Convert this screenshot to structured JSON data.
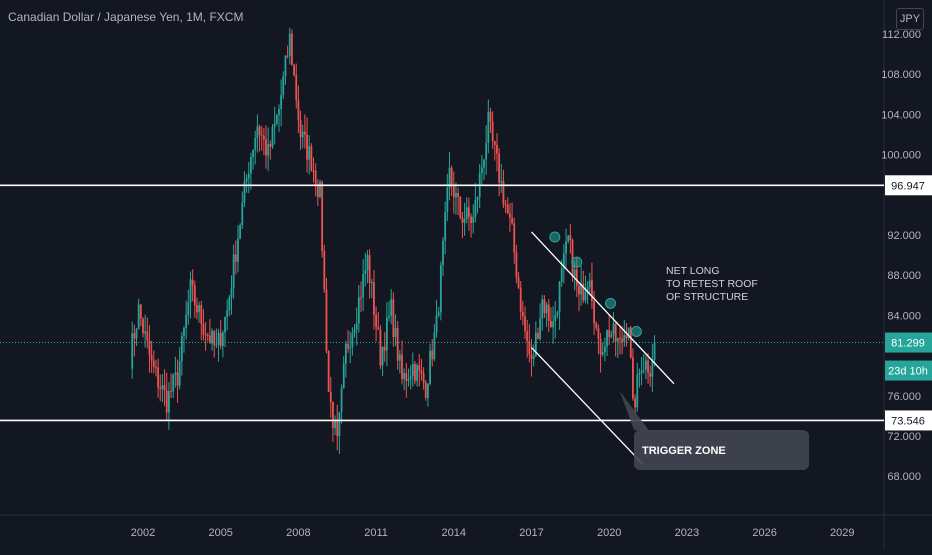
{
  "header": {
    "symbol_title": "Canadian Dollar / Japanese Yen, 1M, FXCM",
    "currency_button": "JPY"
  },
  "colors": {
    "background": "#131722",
    "up": "#26a69a",
    "down": "#ef5350",
    "axis_text": "#b2b5be",
    "grid": "#1e222d",
    "horizontal_line": "#ffffff",
    "channel_line": "#ffffff",
    "marker": "#26a69a",
    "price_line": "#26a69a"
  },
  "chart_data": {
    "type": "candlestick",
    "title": "Canadian Dollar / Japanese Yen",
    "interval": "1M",
    "source": "FXCM",
    "currency": "JPY",
    "x_tick_labels": [
      "2002",
      "2005",
      "2008",
      "2011",
      "2014",
      "2017",
      "2020",
      "2023",
      "2026",
      "2029"
    ],
    "y_tick_labels": [
      "68.000",
      "72.000",
      "76.000",
      "80.000",
      "84.000",
      "88.000",
      "92.000",
      "96.000",
      "100.000",
      "104.000",
      "108.000",
      "112.000"
    ],
    "ylim": [
      66.0,
      115.0
    ],
    "xlim": [
      1999.6,
      2032.6
    ],
    "grid": false,
    "horizontal_levels": [
      {
        "value": 96.947,
        "label": "96.947"
      },
      {
        "value": 73.546,
        "label": "73.546"
      }
    ],
    "last_price": {
      "value": 81.299,
      "label": "81.299",
      "countdown": "23d 10h"
    },
    "descending_channel": {
      "upper": {
        "start": [
          2017.0,
          92.3
        ],
        "end": [
          2022.5,
          77.2
        ]
      },
      "lower": {
        "start": [
          2017.0,
          80.8
        ],
        "end": [
          2021.3,
          69.2
        ]
      }
    },
    "touch_points": [
      {
        "x": 2017.9,
        "y": 91.8
      },
      {
        "x": 2018.75,
        "y": 89.3
      },
      {
        "x": 2020.05,
        "y": 85.2
      },
      {
        "x": 2021.05,
        "y": 82.4
      }
    ],
    "annotations": [
      {
        "text_lines": [
          "NET LONG",
          "TO RETEST ROOF",
          "OF STRUCTURE"
        ]
      },
      {
        "text_lines": [
          "TRIGGER ZONE"
        ],
        "pointer": [
          2020.4,
          76.5
        ]
      }
    ],
    "anchors": [
      [
        2001.5,
        80.0
      ],
      [
        2001.8,
        84.5
      ],
      [
        2002.3,
        79.0
      ],
      [
        2002.9,
        75.5
      ],
      [
        2003.3,
        78.0
      ],
      [
        2003.8,
        86.5
      ],
      [
        2004.3,
        83.0
      ],
      [
        2004.8,
        80.5
      ],
      [
        2005.2,
        84.5
      ],
      [
        2005.6,
        92.0
      ],
      [
        2006.0,
        99.0
      ],
      [
        2006.3,
        103.0
      ],
      [
        2006.7,
        100.0
      ],
      [
        2007.1,
        104.5
      ],
      [
        2007.5,
        111.5
      ],
      [
        2007.9,
        102.0
      ],
      [
        2008.3,
        99.5
      ],
      [
        2008.6,
        96.0
      ],
      [
        2008.9,
        76.5
      ],
      [
        2009.2,
        71.0
      ],
      [
        2009.5,
        80.5
      ],
      [
        2009.9,
        84.5
      ],
      [
        2010.3,
        89.5
      ],
      [
        2010.8,
        80.0
      ],
      [
        2011.2,
        84.5
      ],
      [
        2011.6,
        77.5
      ],
      [
        2012.0,
        79.0
      ],
      [
        2012.5,
        77.0
      ],
      [
        2012.9,
        83.0
      ],
      [
        2013.4,
        98.0
      ],
      [
        2013.8,
        94.0
      ],
      [
        2014.3,
        93.5
      ],
      [
        2014.9,
        103.0
      ],
      [
        2015.3,
        98.0
      ],
      [
        2015.8,
        92.0
      ],
      [
        2016.2,
        83.5
      ],
      [
        2016.5,
        79.0
      ],
      [
        2016.9,
        85.5
      ],
      [
        2017.3,
        83.0
      ],
      [
        2017.9,
        91.5
      ],
      [
        2018.3,
        85.5
      ],
      [
        2018.7,
        88.5
      ],
      [
        2019.0,
        80.5
      ],
      [
        2019.4,
        82.5
      ],
      [
        2019.8,
        81.0
      ],
      [
        2020.1,
        83.5
      ],
      [
        2020.3,
        74.5
      ],
      [
        2020.6,
        79.5
      ],
      [
        2020.9,
        79.0
      ],
      [
        2021.1,
        81.3
      ]
    ]
  }
}
